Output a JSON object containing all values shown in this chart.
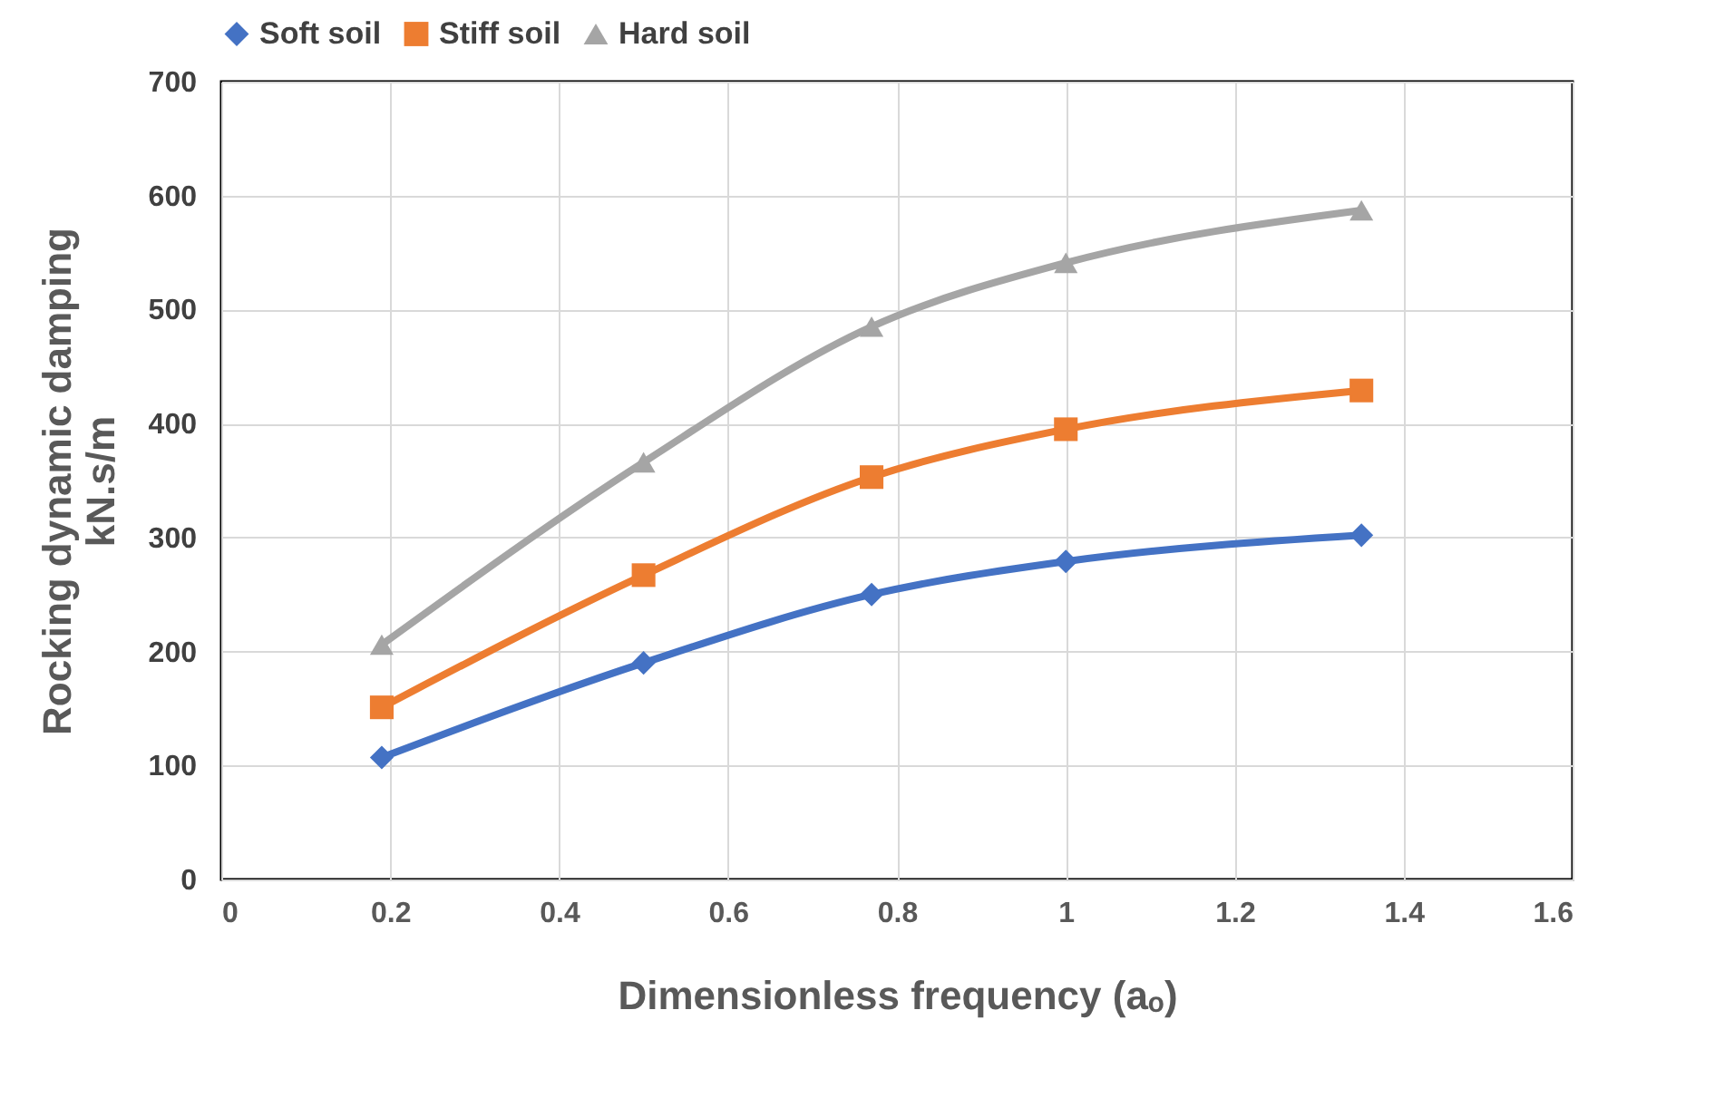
{
  "chart_data": {
    "type": "line",
    "xlabel": "Dimensionless frequency (aₒ)",
    "ylabel": "Rocking dynamic damping\nkN.s/m",
    "x": [
      0.19,
      0.5,
      0.77,
      1.0,
      1.35
    ],
    "series": [
      {
        "name": "Soft soil",
        "color": "#4472c4",
        "marker": "diamond",
        "values": [
          107,
          190,
          250,
          279,
          302
        ]
      },
      {
        "name": "Stiff soil",
        "color": "#ed7d31",
        "marker": "square",
        "values": [
          151,
          267,
          353,
          395,
          429
        ]
      },
      {
        "name": "Hard soil",
        "color": "#a5a5a5",
        "marker": "triangle",
        "values": [
          206,
          366,
          485,
          541,
          587
        ]
      }
    ],
    "xlim": [
      0,
      1.6
    ],
    "xticks": [
      0,
      0.2,
      0.4,
      0.6,
      0.8,
      1,
      1.2,
      1.4,
      1.6
    ],
    "ylim": [
      0,
      700
    ],
    "yticks": [
      0,
      100,
      200,
      300,
      400,
      500,
      600,
      700
    ],
    "grid": true,
    "legend": "top",
    "line_style": "solid"
  }
}
